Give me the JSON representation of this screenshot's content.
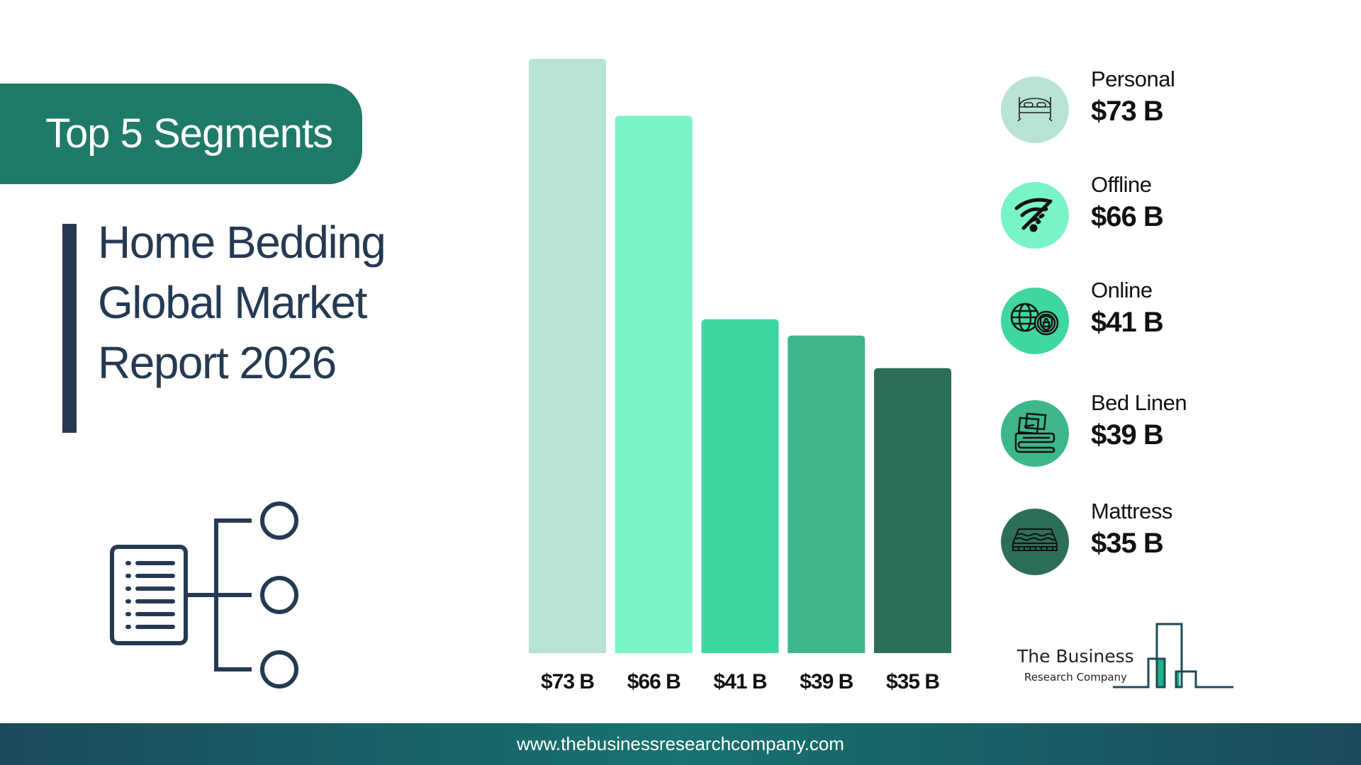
{
  "header": {
    "label": "Top 5 Segments"
  },
  "title": {
    "lines": [
      "Home Bedding",
      "Global Market",
      "Report 2026"
    ]
  },
  "chart_data": {
    "type": "bar",
    "categories": [
      "Personal",
      "Offline",
      "Online",
      "Bed Linen",
      "Mattress"
    ],
    "values": [
      73,
      66,
      41,
      39,
      35
    ],
    "value_labels": [
      "$73 B",
      "$66 B",
      "$41 B",
      "$39 B",
      "$35 B"
    ],
    "unit": "$ B",
    "colors": [
      "#b8e3d3",
      "#79f4c6",
      "#3fd69f",
      "#3db68a",
      "#2d6e57"
    ],
    "grid": false,
    "ylim": [
      0,
      73
    ]
  },
  "legend": [
    {
      "name": "Personal",
      "value": "$73 B",
      "icon": "bed-icon",
      "color": "#b8e3d3"
    },
    {
      "name": "Offline",
      "value": "$66 B",
      "icon": "wifi-off-icon",
      "color": "#79f4c6"
    },
    {
      "name": "Online",
      "value": "$41 B",
      "icon": "globe-shield-icon",
      "color": "#3fd69f"
    },
    {
      "name": "Bed Linen",
      "value": "$39 B",
      "icon": "pillows-linen-icon",
      "color": "#3db68a"
    },
    {
      "name": "Mattress",
      "value": "$35 B",
      "icon": "mattress-icon",
      "color": "#2d6e57"
    }
  ],
  "logo": {
    "line1": "The Business",
    "line2": "Research Company"
  },
  "footer": {
    "url": "www.thebusinessresearchcompany.com"
  }
}
